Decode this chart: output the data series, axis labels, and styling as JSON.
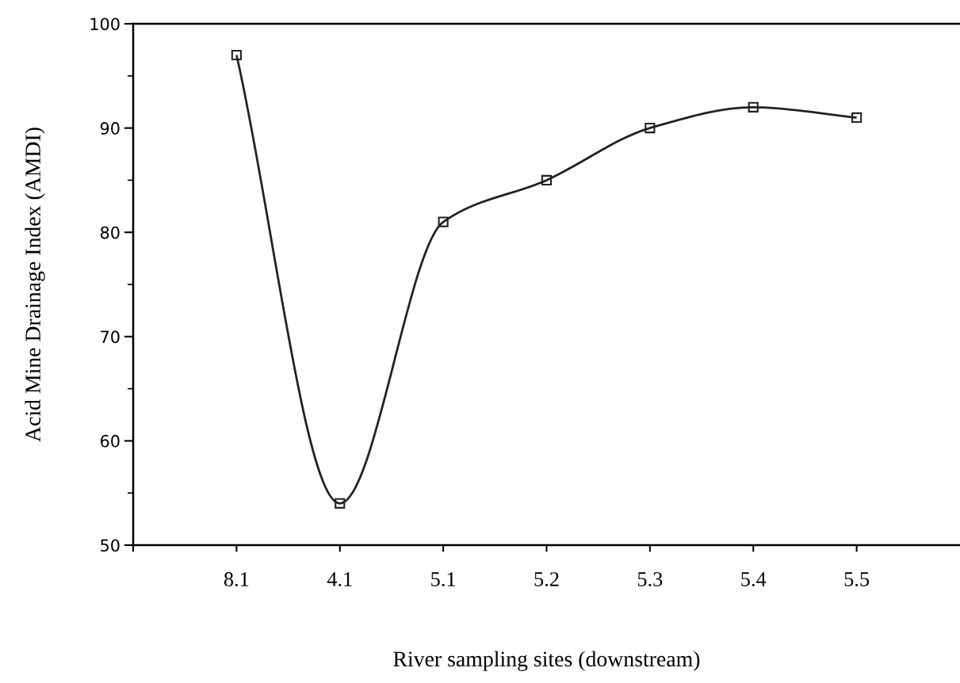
{
  "chart_data": {
    "type": "line",
    "xlabel": "River sampling sites (downstream)",
    "ylabel": "Acid Mine Drainage Index (AMDI)",
    "categories": [
      "8.1",
      "4.1",
      "5.1",
      "5.2",
      "5.3",
      "5.4",
      "5.5"
    ],
    "series": [
      {
        "color": "#222222",
        "values": [
          97,
          54,
          81,
          85,
          90,
          92,
          91
        ]
      }
    ],
    "ylim": [
      50,
      100
    ],
    "yticks": [
      50,
      60,
      70,
      80,
      90,
      100
    ],
    "grid": false,
    "legend": false,
    "marker": "square",
    "line_style": "solid"
  }
}
